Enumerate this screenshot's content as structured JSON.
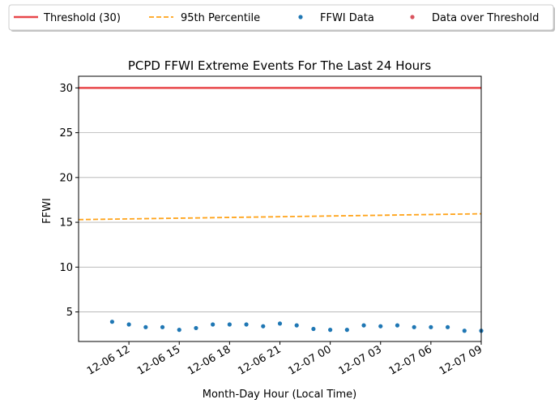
{
  "chart_data": {
    "type": "scatter",
    "title": "PCPD FFWI Extreme Events For The Last 24 Hours",
    "xlabel": "Month-Day Hour (Local Time)",
    "ylabel": "FFWI",
    "xlim": [
      "2024-12-06T09:00",
      "2024-12-07T09:00"
    ],
    "ylim": [
      1.7,
      31.3
    ],
    "grid": "horizontal",
    "legend_position": "top, outside plot",
    "x_ticks": [
      {
        "value": "2024-12-06T12:00",
        "label": "12-06 12"
      },
      {
        "value": "2024-12-06T15:00",
        "label": "12-06 15"
      },
      {
        "value": "2024-12-06T18:00",
        "label": "12-06 18"
      },
      {
        "value": "2024-12-06T21:00",
        "label": "12-06 21"
      },
      {
        "value": "2024-12-07T00:00",
        "label": "12-07 00"
      },
      {
        "value": "2024-12-07T03:00",
        "label": "12-07 03"
      },
      {
        "value": "2024-12-07T06:00",
        "label": "12-07 06"
      },
      {
        "value": "2024-12-07T09:00",
        "label": "12-07 09"
      }
    ],
    "y_ticks": [
      5,
      10,
      15,
      20,
      25,
      30
    ],
    "series": [
      {
        "name": "Threshold (30)",
        "kind": "hline",
        "color": "#e8474a",
        "y": 30
      },
      {
        "name": "95th Percentile",
        "kind": "dashed-line",
        "color": "#ffa319",
        "x": [
          "2024-12-06T09:00",
          "2024-12-07T09:00"
        ],
        "y": [
          15.3,
          15.95
        ]
      },
      {
        "name": "FFWI Data",
        "kind": "scatter",
        "color": "#1f77b4",
        "points": [
          {
            "x": "2024-12-06T11:00",
            "y": 3.9
          },
          {
            "x": "2024-12-06T12:00",
            "y": 3.6
          },
          {
            "x": "2024-12-06T13:00",
            "y": 3.3
          },
          {
            "x": "2024-12-06T14:00",
            "y": 3.3
          },
          {
            "x": "2024-12-06T15:00",
            "y": 3.0
          },
          {
            "x": "2024-12-06T16:00",
            "y": 3.2
          },
          {
            "x": "2024-12-06T17:00",
            "y": 3.6
          },
          {
            "x": "2024-12-06T18:00",
            "y": 3.6
          },
          {
            "x": "2024-12-06T19:00",
            "y": 3.6
          },
          {
            "x": "2024-12-06T20:00",
            "y": 3.4
          },
          {
            "x": "2024-12-06T21:00",
            "y": 3.7
          },
          {
            "x": "2024-12-06T22:00",
            "y": 3.5
          },
          {
            "x": "2024-12-06T23:00",
            "y": 3.1
          },
          {
            "x": "2024-12-07T00:00",
            "y": 3.0
          },
          {
            "x": "2024-12-07T01:00",
            "y": 3.0
          },
          {
            "x": "2024-12-07T02:00",
            "y": 3.5
          },
          {
            "x": "2024-12-07T03:00",
            "y": 3.4
          },
          {
            "x": "2024-12-07T04:00",
            "y": 3.5
          },
          {
            "x": "2024-12-07T05:00",
            "y": 3.3
          },
          {
            "x": "2024-12-07T06:00",
            "y": 3.3
          },
          {
            "x": "2024-12-07T07:00",
            "y": 3.3
          },
          {
            "x": "2024-12-07T08:00",
            "y": 2.9
          },
          {
            "x": "2024-12-07T09:00",
            "y": 2.9
          }
        ]
      },
      {
        "name": "Data over Threshold",
        "kind": "scatter",
        "color": "#d9545e",
        "points": []
      }
    ]
  }
}
